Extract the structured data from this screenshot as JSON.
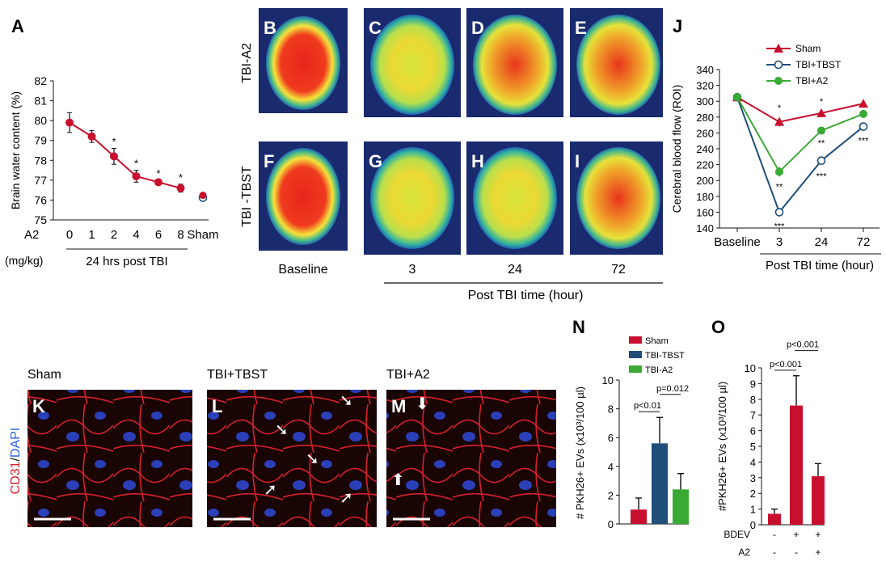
{
  "panel_letters": {
    "A": "A",
    "B": "B",
    "C": "C",
    "D": "D",
    "E": "E",
    "F": "F",
    "G": "G",
    "H": "H",
    "I": "I",
    "J": "J",
    "K": "K",
    "L": "L",
    "M": "M",
    "N": "N",
    "O": "O"
  },
  "panelA": {
    "ylabel": "Brain water content (%)",
    "a2_label": "A2",
    "unit_label": "(mg/kg)",
    "group_label": "24 hrs post TBI"
  },
  "panelB": {
    "row_labels": [
      "TBI-A2",
      "TBI -TBST"
    ],
    "col_labels": [
      "Baseline",
      "3",
      "24",
      "72"
    ],
    "xlabel": "Post TBI time (hour)"
  },
  "panelJ": {
    "ylabel": "Cerebral blood flow (ROI)",
    "xlabel": "Post TBI time (hour)"
  },
  "panelK": {
    "titles": [
      "Sham",
      "TBI+TBST",
      "TBI+A2"
    ],
    "stain_red": "CD31",
    "stain_sep": "/",
    "stain_blue": "DAPI"
  },
  "panelN": {
    "ylabel": "# PKH26+ EVs (x10³/100 µl)",
    "p1": "p<0.01",
    "p2": "p=0.012"
  },
  "panelO": {
    "ylabel": "#PKH26+ EVs (x10³/100 µl)",
    "p1": "p<0.001",
    "p2": "p<0.001",
    "row1_label": "BDEV",
    "row2_label": "A2",
    "row1_signs": [
      "-",
      "+",
      "+"
    ],
    "row2_signs": [
      "-",
      "-",
      "+"
    ]
  },
  "colors": {
    "red": "#c8102e",
    "blue": "#1f4e79",
    "green": "#3aaa35",
    "navy": "#1f4e79"
  },
  "chart_data": [
    {
      "type": "line",
      "id": "A",
      "categories": [
        "0",
        "1",
        "2",
        "4",
        "6",
        "8",
        "Sham"
      ],
      "values": [
        79.9,
        79.2,
        78.2,
        77.2,
        76.9,
        76.6,
        76.2
      ],
      "errors": [
        0.5,
        0.3,
        0.4,
        0.3,
        0.1,
        0.2,
        0.05
      ],
      "significance": [
        "",
        "",
        "*",
        "*",
        "*",
        "*",
        ""
      ],
      "ylim": [
        75,
        82
      ],
      "yticks": [
        75,
        76,
        77,
        78,
        79,
        80,
        81,
        82
      ],
      "ylabel": "Brain water content (%)",
      "xlabel": "24 hrs post TBI"
    },
    {
      "type": "line",
      "id": "J",
      "categories": [
        "Baseline",
        "3",
        "24",
        "72"
      ],
      "series": [
        {
          "name": "Sham",
          "values": [
            305,
            274,
            285,
            297
          ],
          "errors": [
            5,
            6,
            3,
            3
          ],
          "sig": [
            "",
            "*",
            "*",
            ""
          ],
          "color": "#c8102e",
          "marker": "triangle"
        },
        {
          "name": "TBI+TBST",
          "values": [
            305,
            160,
            225,
            268
          ],
          "errors": [
            5,
            3,
            5,
            3
          ],
          "sig": [
            "",
            "***",
            "***",
            "***"
          ],
          "color": "#1f4e79",
          "marker": "circle-open"
        },
        {
          "name": "TBI+A2",
          "values": [
            305,
            211,
            263,
            284
          ],
          "errors": [
            5,
            6,
            3,
            3
          ],
          "sig": [
            "",
            "**",
            "**",
            ""
          ],
          "color": "#3aaa35",
          "marker": "circle"
        }
      ],
      "ylim": [
        140,
        340
      ],
      "yticks": [
        140,
        160,
        180,
        200,
        220,
        240,
        260,
        280,
        300,
        320,
        340
      ],
      "ylabel": "Cerebral blood flow (ROI)",
      "xlabel": "Post TBI time (hour)"
    },
    {
      "type": "bar",
      "id": "N",
      "categories": [
        "Sham",
        "TBI-TBST",
        "TBI-A2"
      ],
      "values": [
        1.0,
        5.6,
        2.4
      ],
      "errors": [
        0.8,
        1.8,
        1.1
      ],
      "colors": [
        "#c8102e",
        "#1f4e79",
        "#3aaa35"
      ],
      "ylim": [
        0,
        10
      ],
      "yticks": [
        0,
        2,
        4,
        6,
        8,
        10
      ],
      "legend": [
        "Sham",
        "TBI-TBST",
        "TBI-A2"
      ]
    },
    {
      "type": "bar",
      "id": "O",
      "categories": [
        "-/-",
        "+/-",
        "+/+"
      ],
      "values": [
        0.7,
        7.6,
        3.1
      ],
      "errors": [
        0.3,
        1.9,
        0.8
      ],
      "colors": [
        "#c8102e",
        "#c8102e",
        "#c8102e"
      ],
      "ylim": [
        0,
        10
      ],
      "yticks": [
        0,
        1,
        2,
        3,
        4,
        5,
        6,
        7,
        8,
        9,
        10
      ]
    }
  ]
}
